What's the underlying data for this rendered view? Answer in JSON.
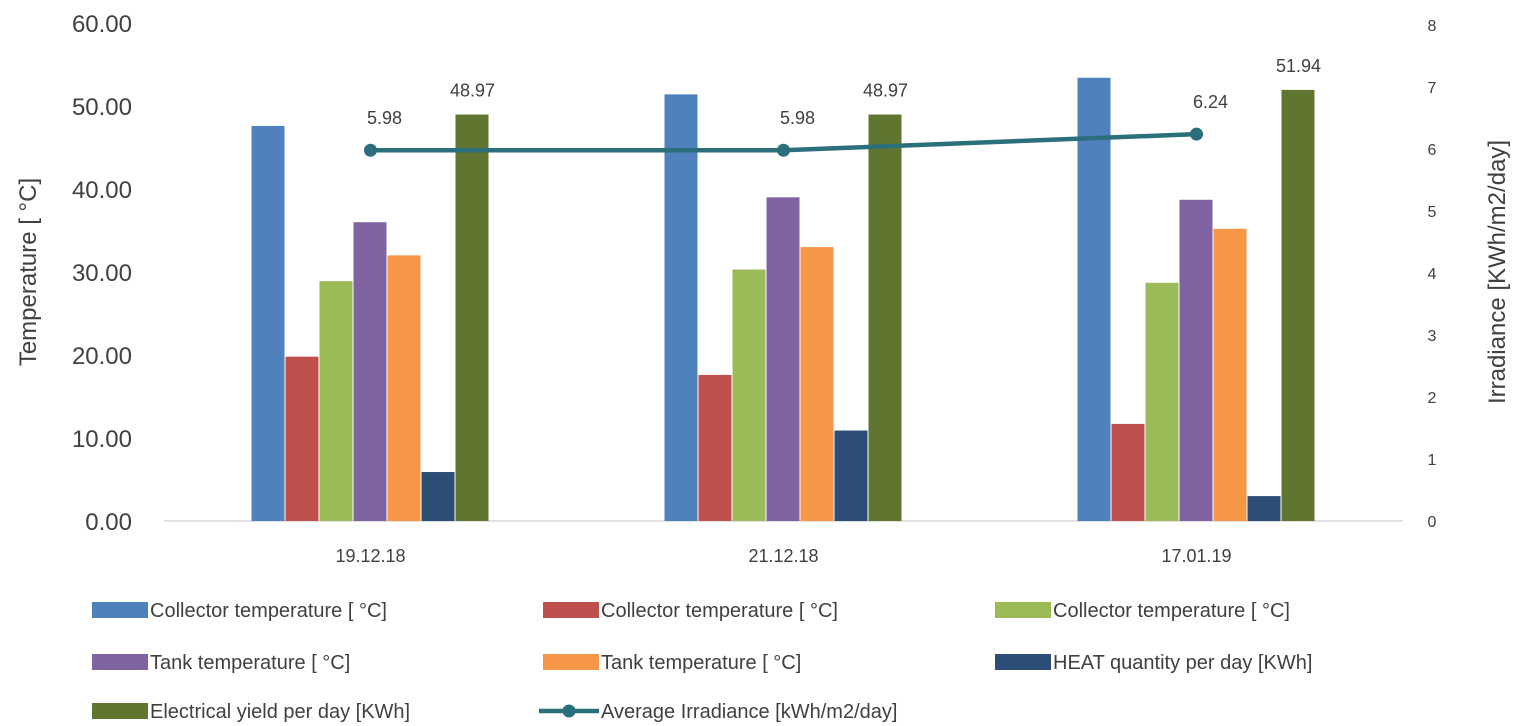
{
  "chart_data": {
    "type": "bar",
    "categories": [
      "19.12.18",
      "21.12.18",
      "17.01.19"
    ],
    "series": [
      {
        "name": "Collector temperature [ °C]",
        "values": [
          47.6,
          51.4,
          53.4
        ],
        "color": "#4F81BD"
      },
      {
        "name": "Collector temperature [ °C]",
        "values": [
          19.8,
          17.6,
          11.7
        ],
        "color": "#C0504D"
      },
      {
        "name": "Collector temperature [ °C]",
        "values": [
          28.9,
          30.3,
          28.7
        ],
        "color": "#9BBB59"
      },
      {
        "name": "Tank temperature [ °C]",
        "values": [
          36.0,
          39.0,
          38.7
        ],
        "color": "#8064A2"
      },
      {
        "name": "Tank temperature [ °C]",
        "values": [
          32.0,
          33.0,
          35.2
        ],
        "color": "#F79646"
      },
      {
        "name": "HEAT quantity per day [KWh]",
        "values": [
          5.9,
          10.9,
          3.0
        ],
        "color": "#2C4D75"
      },
      {
        "name": "Electrical yield per day  [KWh]",
        "values": [
          48.97,
          48.97,
          51.94
        ],
        "color": "#5F7530",
        "labels": [
          "48.97",
          "48.97",
          "51.94"
        ]
      }
    ],
    "line_series": {
      "name": "Average Irradiance [kWh/m2/day]",
      "values": [
        5.98,
        5.98,
        6.24
      ],
      "labels": [
        "5.98",
        "5.98",
        "6.24"
      ],
      "color": "#2A6F7B",
      "axis": "right"
    },
    "ylabel": "Temperature [ °C]",
    "ylabel_right": "Irradiance [KWh/m2/day]",
    "ylim": [
      0,
      60
    ],
    "ylim_right": [
      0,
      8
    ],
    "yticks": [
      "0.00",
      "10.00",
      "20.00",
      "30.00",
      "40.00",
      "50.00",
      "60.00"
    ],
    "yticks_right": [
      "0",
      "1",
      "2",
      "3",
      "4",
      "5",
      "6",
      "7",
      "8"
    ],
    "grid": false,
    "legend": "bottom"
  }
}
